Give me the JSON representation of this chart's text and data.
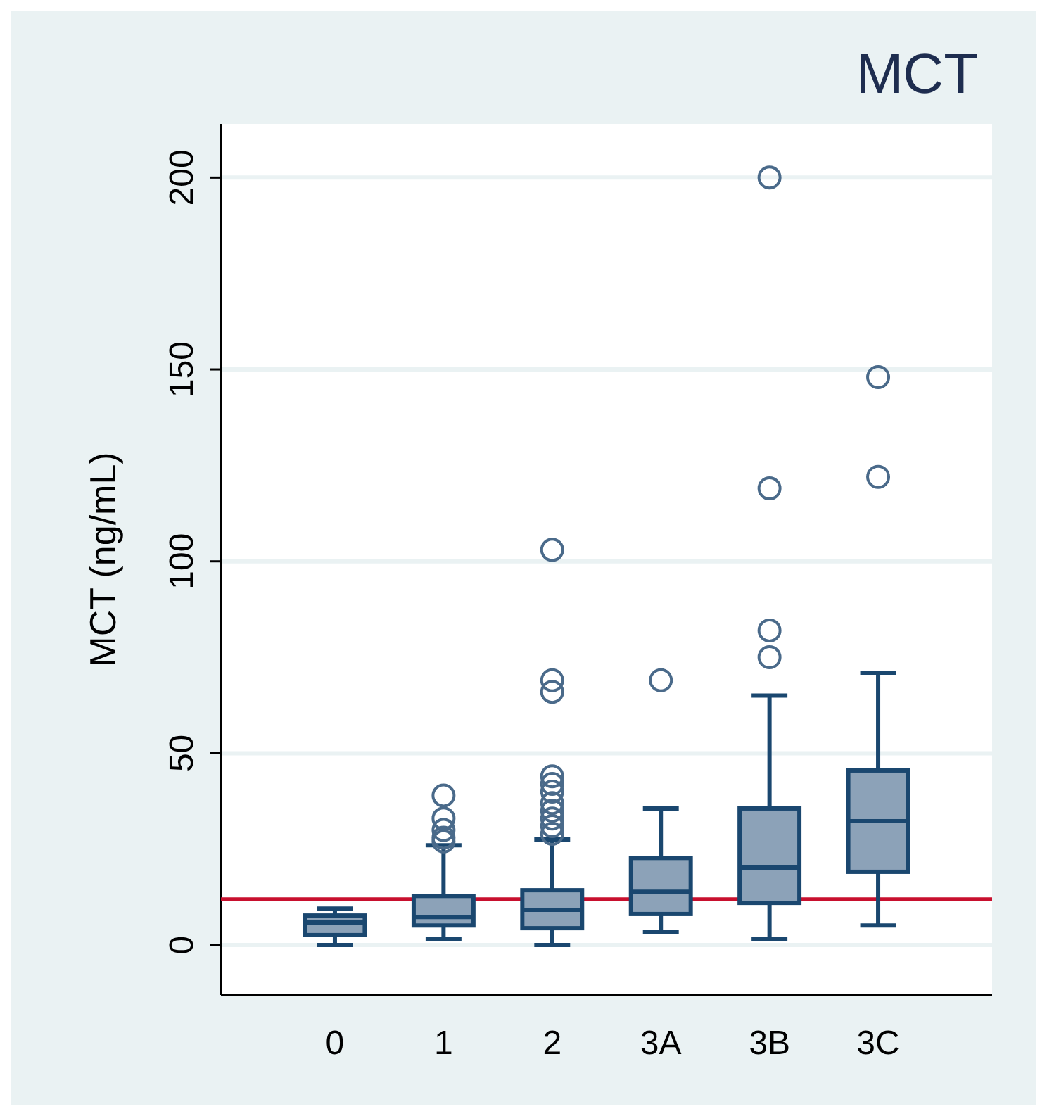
{
  "chart_data": {
    "type": "box",
    "title": "MCT",
    "ylabel": "MCT (ng/mL)",
    "categories": [
      "0",
      "1",
      "2",
      "3A",
      "3B",
      "3C"
    ],
    "color": "#8ca2b8",
    "ylim": [
      -13,
      214
    ],
    "yticks": [
      0,
      50,
      100,
      150,
      200
    ],
    "grid": "y",
    "boxes": [
      {
        "low": 0,
        "q1": 2.6,
        "median": 5.9,
        "q3": 7.7,
        "high": 9.5
      },
      {
        "low": 1.5,
        "q1": 5.1,
        "median": 7.3,
        "q3": 12.8,
        "high": 26,
        "outliers": [
          27,
          28,
          30,
          33,
          39
        ]
      },
      {
        "low": 0,
        "q1": 4.4,
        "median": 9.2,
        "q3": 14.3,
        "high": 27.5,
        "outliers": [
          29,
          31,
          33,
          35,
          37,
          40,
          42,
          44,
          66,
          69,
          103
        ]
      },
      {
        "low": 3.3,
        "q1": 8.1,
        "median": 13.9,
        "q3": 22.7,
        "high": 35.6,
        "outliers": [
          69
        ]
      },
      {
        "low": 1.5,
        "q1": 11,
        "median": 20.2,
        "q3": 35.6,
        "high": 65,
        "outliers": [
          75,
          82,
          119,
          200
        ]
      },
      {
        "low": 5.1,
        "q1": 19.1,
        "median": 32.3,
        "q3": 45.5,
        "high": 71,
        "outliers": [
          122,
          148
        ]
      }
    ],
    "ref_lines": [
      {
        "axis": "y",
        "value": 12,
        "color": "#c8102e"
      }
    ]
  }
}
